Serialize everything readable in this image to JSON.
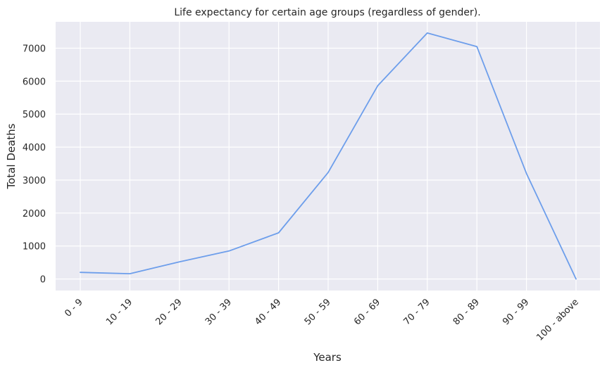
{
  "chart_data": {
    "type": "line",
    "title": "Life expectancy for certain age groups (regardless of gender).",
    "xlabel": "Years",
    "ylabel": "Total Deaths",
    "categories": [
      "0 - 9",
      "10 - 19",
      "20 - 29",
      "30 - 39",
      "40 - 49",
      "50 - 59",
      "60 - 69",
      "70 - 79",
      "80 - 89",
      "90 - 99",
      "100 - above"
    ],
    "series": [
      {
        "values": [
          200,
          160,
          520,
          850,
          1400,
          3230,
          5860,
          7460,
          7050,
          3200,
          0
        ]
      }
    ],
    "ylim": [
      -350,
      7800
    ],
    "yticks": [
      0,
      1000,
      2000,
      3000,
      4000,
      5000,
      6000,
      7000
    ],
    "grid": true,
    "line_color": "#6d9eeb",
    "background_color": "#eaeaf2"
  }
}
